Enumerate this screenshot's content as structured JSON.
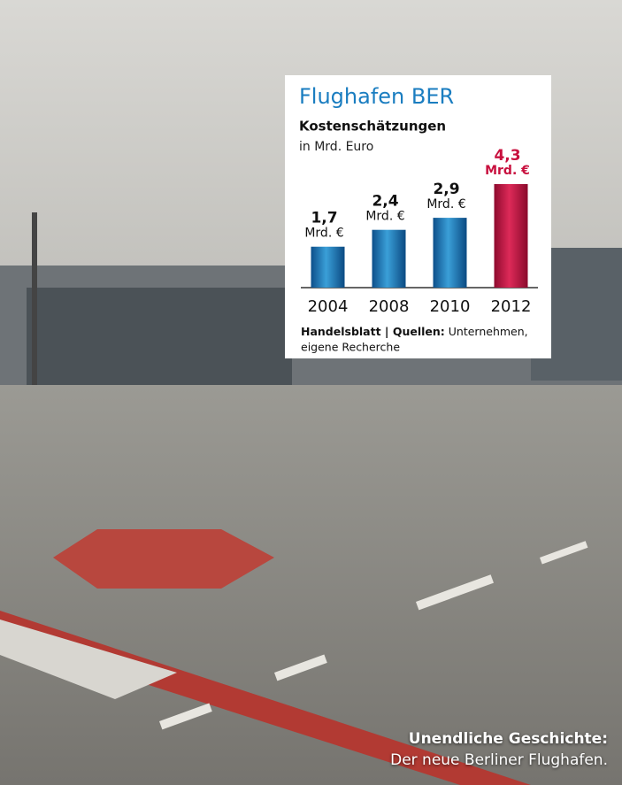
{
  "chart_data": {
    "type": "bar",
    "title": "Flughafen BER",
    "subtitle": "Kostenschätzungen",
    "unit_note": "in Mrd. Euro",
    "categories": [
      "2004",
      "2008",
      "2010",
      "2012"
    ],
    "values": [
      1.7,
      2.4,
      2.9,
      4.3
    ],
    "value_labels": [
      "1,7",
      "2,4",
      "2,9",
      "4,3"
    ],
    "value_unit": "Mrd. €",
    "colors": [
      "#1a7dc0",
      "#1a7dc0",
      "#1a7dc0",
      "#c8103e"
    ],
    "source_label": "Handelsblatt | Quellen:",
    "source_text_1": "Unternehmen,",
    "source_text_2": "eigene Recherche"
  },
  "caption": {
    "label": "Unendliche Geschichte:",
    "text": "Der neue Berliner Flughafen."
  }
}
